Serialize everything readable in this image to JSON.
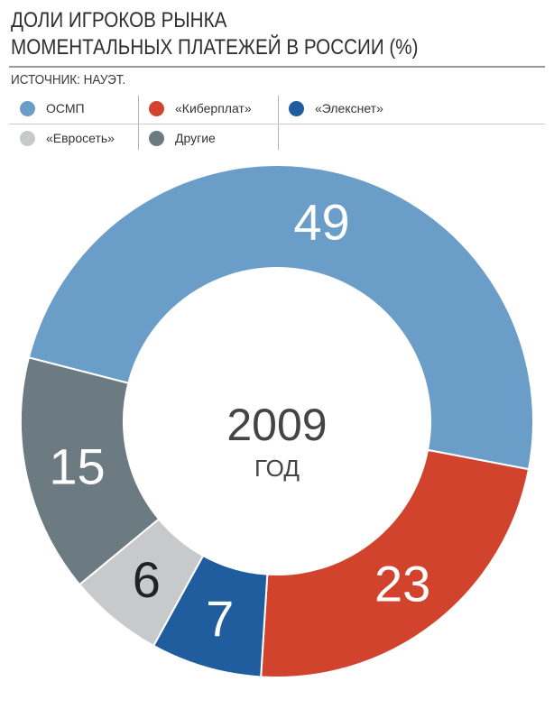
{
  "title": [
    "ДОЛИ ИГРОКОВ РЫНКА",
    "МОМЕНТАЛЬНЫХ ПЛАТЕЖЕЙ В РОССИИ (%)"
  ],
  "source": "ИСТОЧНИК: НАУЭТ.",
  "center": {
    "year": "2009",
    "unit": "ГОД"
  },
  "chart_data": {
    "type": "pie",
    "title": "ДОЛИ ИГРОКОВ РЫНКА МОМЕНТАЛЬНЫХ ПЛАТЕЖЕЙ В РОССИИ (%)",
    "donut": true,
    "legend": "top",
    "slices": [
      {
        "label": "ОСМП",
        "value": 49,
        "color": "#6a9ec8"
      },
      {
        "label": "«Киберплат»",
        "value": 23,
        "color": "#d2432e"
      },
      {
        "label": "«Элекснет»",
        "value": 7,
        "color": "#1f5d9e"
      },
      {
        "label": "«Евросеть»",
        "value": 6,
        "color": "#c8c9cb"
      },
      {
        "label": "Другие",
        "value": 15,
        "color": "#6c7a82"
      }
    ]
  }
}
